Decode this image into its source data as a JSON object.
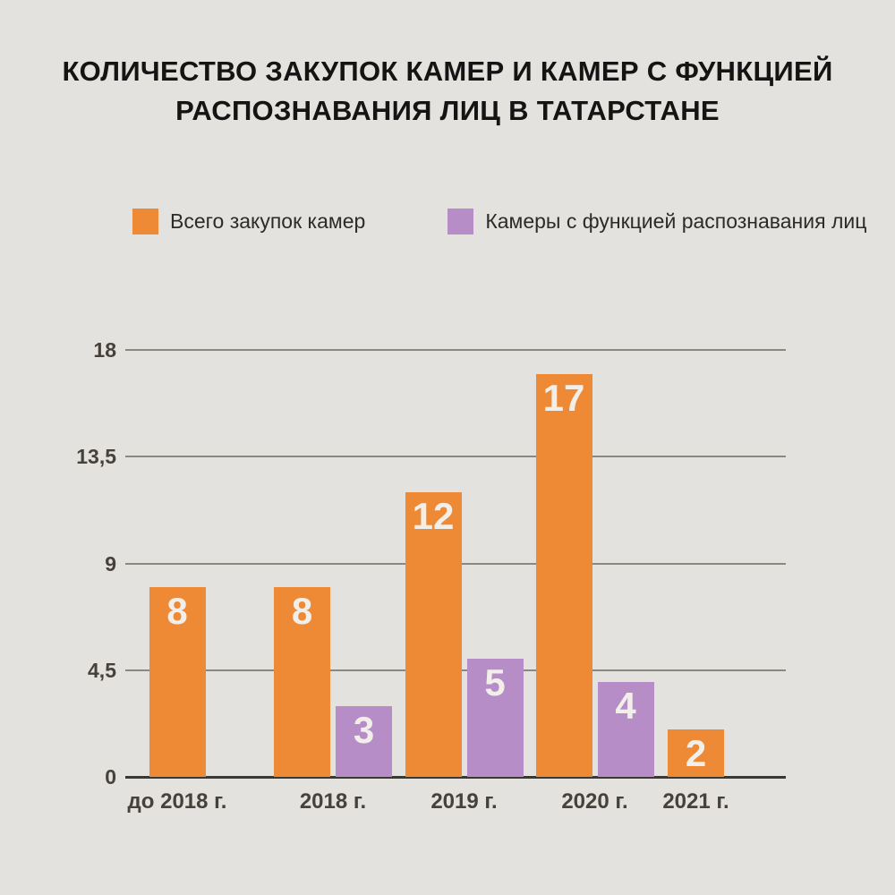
{
  "title": {
    "line1": "КОЛИЧЕСТВО ЗАКУПОК КАМЕР И КАМЕР С ФУНКЦИЕЙ",
    "line2": "РАСПОЗНАВАНИЯ ЛИЦ В ТАТАРСТАНЕ"
  },
  "colors": {
    "background": "#E4E2DE",
    "orange": "#EE8A35",
    "purple": "#B68DC6",
    "gridline": "#8B8781",
    "axis_line": "#3B3733",
    "title_text": "#141414",
    "tick_text": "#46413B",
    "bar_value_text": "#F2EFEA",
    "legend_text": "#2B2B29"
  },
  "chart_data": {
    "type": "bar",
    "title": "КОЛИЧЕСТВО ЗАКУПОК КАМЕР И КАМЕР С ФУНКЦИЕЙ РАСПОЗНАВАНИЯ ЛИЦ В ТАТАРСТАНЕ",
    "categories": [
      "до 2018 г.",
      "2018 г.",
      "2019 г.",
      "2020 г.",
      "2021 г."
    ],
    "series": [
      {
        "name": "Всего закупок камер",
        "color": "#EE8A35",
        "values": [
          8,
          8,
          12,
          17,
          2
        ]
      },
      {
        "name": "Камеры с функцией распознавания лиц",
        "color": "#B68DC6",
        "values": [
          null,
          3,
          5,
          4,
          null
        ]
      }
    ],
    "xlabel": "",
    "ylabel": "",
    "ylim": [
      0,
      18
    ],
    "yticks": [
      0,
      4.5,
      9,
      13.5,
      18
    ],
    "ytick_labels": [
      "0",
      "4,5",
      "9",
      "13,5",
      "18"
    ],
    "grid": true,
    "legend_position": "top",
    "value_labels": "inside-top"
  }
}
